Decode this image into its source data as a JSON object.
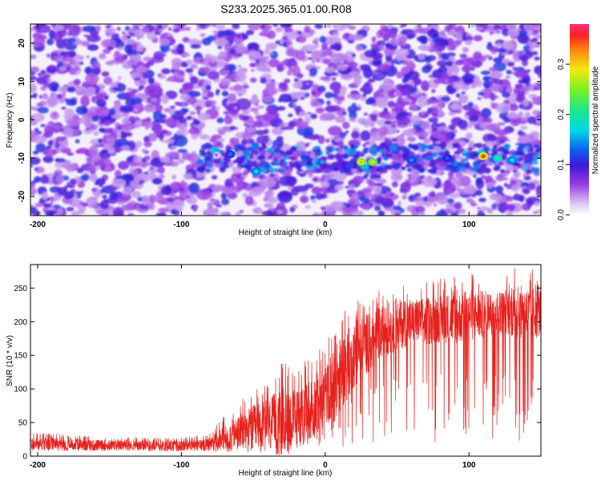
{
  "title": "S233.2025.365.01.00.R08",
  "colors": {
    "snr_line": "#e8201c",
    "axis": "#000000"
  },
  "chart_data": [
    {
      "type": "heatmap",
      "title": "S233.2025.365.01.00.R08",
      "xlabel": "Height of straight line (km)",
      "ylabel": "Frequency (Hz)",
      "xlim": [
        -205,
        150
      ],
      "ylim": [
        -25,
        25
      ],
      "x_ticks": [
        -200,
        -100,
        0,
        100
      ],
      "y_ticks": [
        -20,
        -10,
        0,
        10,
        20
      ],
      "colorbar": {
        "label": "Normalized spectral amplitude",
        "range": [
          0.0,
          0.38
        ],
        "ticks": [
          0.0,
          0.1,
          0.2,
          0.3
        ],
        "colormap": "rainbow-white"
      },
      "features": [
        {
          "description_band_center_hz": -10,
          "x_range_km": [
            -90,
            150
          ]
        }
      ],
      "hotspots": [
        {
          "x": 110,
          "y": -9.5,
          "value": 0.37
        },
        {
          "x": 25,
          "y": -11,
          "value": 0.32
        },
        {
          "x": 33,
          "y": -11,
          "value": 0.3
        },
        {
          "x": 120,
          "y": -10,
          "value": 0.22
        },
        {
          "x": -48,
          "y": -13.5,
          "value": 0.18
        },
        {
          "x": 130,
          "y": -10.5,
          "value": 0.18
        },
        {
          "x": 60,
          "y": -10.5,
          "value": 0.15
        },
        {
          "x": -66,
          "y": -9,
          "value": 0.14
        },
        {
          "x": 85,
          "y": -10,
          "value": 0.13
        }
      ]
    },
    {
      "type": "line",
      "xlabel": "Height of straight line (km)",
      "ylabel": "SNR (10 * v/v)",
      "xlim": [
        -205,
        150
      ],
      "ylim": [
        0,
        285
      ],
      "x_ticks": [
        -200,
        -100,
        0,
        100
      ],
      "y_ticks": [
        0,
        50,
        100,
        150,
        200,
        250
      ],
      "series": [
        {
          "x": [
            -205,
            -180,
            -160,
            -140,
            -120,
            -100,
            -90,
            -80,
            -70,
            -60,
            -50,
            -40,
            -30,
            -20,
            -10,
            0,
            10,
            20,
            30,
            40,
            50,
            60,
            70,
            80,
            90,
            100,
            110,
            120,
            130,
            140,
            150
          ],
          "envelope_mean": [
            18,
            17,
            16,
            16,
            15,
            15,
            16,
            18,
            25,
            35,
            40,
            45,
            50,
            55,
            70,
            90,
            120,
            150,
            170,
            185,
            195,
            200,
            200,
            205,
            205,
            210,
            210,
            215,
            215,
            210,
            215
          ],
          "envelope_max": [
            35,
            32,
            30,
            28,
            28,
            28,
            30,
            35,
            60,
            80,
            100,
            110,
            140,
            130,
            150,
            165,
            215,
            230,
            245,
            250,
            260,
            255,
            260,
            265,
            270,
            275,
            270,
            265,
            280,
            282,
            275
          ]
        }
      ]
    }
  ]
}
